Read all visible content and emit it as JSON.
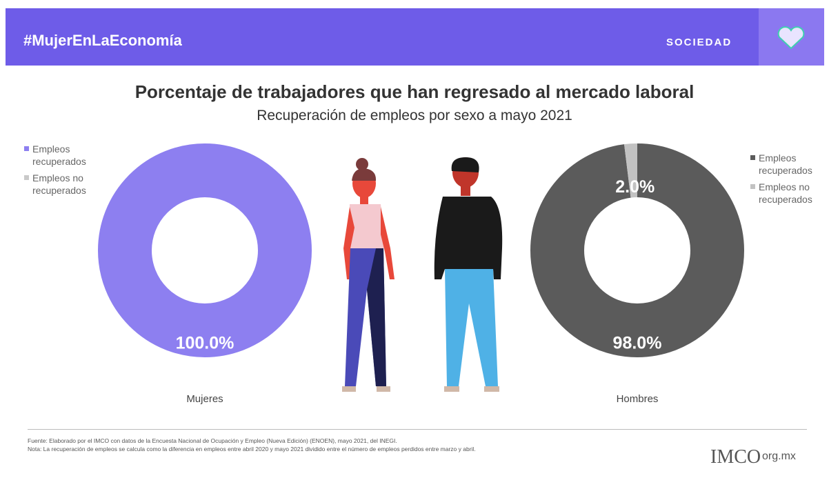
{
  "header": {
    "hashtag": "#MujerEnLaEconomía",
    "section": "SOCIEDAD"
  },
  "title": "Porcentaje de trabajadores que han regresado al mercado laboral",
  "subtitle": "Recuperación de empleos por sexo a mayo 2021",
  "chart_data": [
    {
      "type": "donut",
      "label": "Mujeres",
      "categories": [
        "Empleos recuperados",
        "Empleos no recuperados"
      ],
      "values": [
        100,
        0
      ],
      "value_labels": [
        "100.0%",
        null
      ],
      "colors": [
        "#8d7ff0",
        "#c9c9c9"
      ],
      "legend": "left"
    },
    {
      "type": "donut",
      "label": "Hombres",
      "categories": [
        "Empleos recuperados",
        "Empleos no recuperados"
      ],
      "values": [
        98,
        2
      ],
      "value_labels": [
        "98.0%",
        "2.0%"
      ],
      "colors": [
        "#5b5b5b",
        "#c2c2c2"
      ],
      "legend": "right"
    }
  ],
  "footer": {
    "source": "Fuente: Elaborado por el IMCO con datos de la Encuesta Nacional de Ocupación y Empleo (Nueva Edición) (ENOEN), mayo 2021, del INEGI.",
    "note": "Nota: La recuperación de empleos se calcula como la diferencia en empleos entre abril 2020 y mayo 2021 dividido entre el número de empleos perdidos entre marzo y abril.",
    "logo": "IMCO",
    "site": "org.mx"
  }
}
